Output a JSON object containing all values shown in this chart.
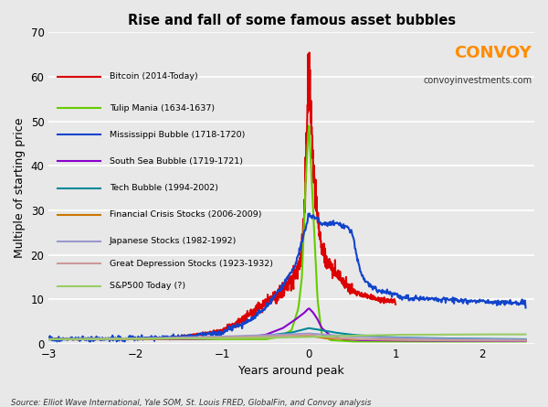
{
  "title": "Rise and fall of some famous asset bubbles",
  "xlabel": "Years around peak",
  "ylabel": "Multiple of starting price",
  "xlim": [
    -3,
    2.6
  ],
  "ylim": [
    0,
    70
  ],
  "yticks": [
    0,
    10,
    20,
    30,
    40,
    50,
    60,
    70
  ],
  "xticks": [
    -3,
    -2,
    -1,
    0,
    1,
    2
  ],
  "source_text": "Source: Elliot Wave International, Yale SOM, St. Louis FRED, GlobalFin, and Convoy analysis",
  "convoy_text": "CONVOY",
  "convoy_url": "convoyinvestments.com",
  "convoy_color": "#FF8C00",
  "bg_color": "#E8E8E8",
  "series": [
    {
      "label": "Bitcoin (2014-Today)",
      "color": "#DD0000",
      "lw": 1.5
    },
    {
      "label": "Tulip Mania (1634-1637)",
      "color": "#66CC00",
      "lw": 1.5
    },
    {
      "label": "Mississippi Bubble (1718-1720)",
      "color": "#1144CC",
      "lw": 1.5
    },
    {
      "label": "South Sea Bubble (1719-1721)",
      "color": "#8800CC",
      "lw": 1.5
    },
    {
      "label": "Tech Bubble (1994-2002)",
      "color": "#008899",
      "lw": 1.5
    },
    {
      "label": "Financial Crisis Stocks (2006-2009)",
      "color": "#CC7700",
      "lw": 1.5
    },
    {
      "label": "Japanese Stocks (1982-1992)",
      "color": "#9999CC",
      "lw": 1.5
    },
    {
      "label": "Great Depression Stocks (1923-1932)",
      "color": "#CC9999",
      "lw": 1.5
    },
    {
      "label": "S&P500 Today (?)",
      "color": "#99CC66",
      "lw": 1.5
    }
  ]
}
